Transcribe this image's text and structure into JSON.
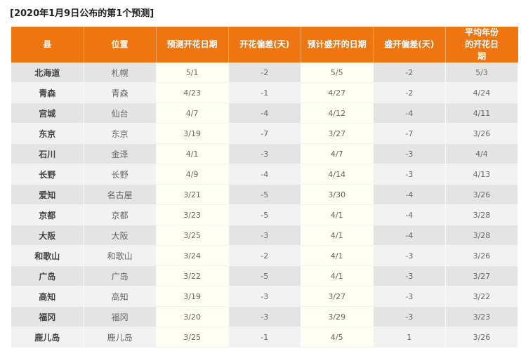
{
  "title": "[2020年1月9日公布的第1个预测]",
  "header": {
    "colors": {
      "header_bg": "#ef7510"
    },
    "columns": [
      "县",
      "位置",
      "预测开花日期",
      "开花偏差(天)",
      "预计盛开的日期",
      "盛开偏差(天)",
      "平均年份的开花日期"
    ]
  },
  "rows": [
    [
      "北海道",
      "札幌",
      "5/1",
      "-2",
      "5/5",
      "-2",
      "5/3"
    ],
    [
      "青森",
      "青森",
      "4/23",
      "-1",
      "4/27",
      "-2",
      "4/24"
    ],
    [
      "宫城",
      "仙台",
      "4/7",
      "-4",
      "4/12",
      "-4",
      "4/11"
    ],
    [
      "东京",
      "东京",
      "3/19",
      "-7",
      "3/27",
      "-7",
      "3/26"
    ],
    [
      "石川",
      "金泽",
      "4/1",
      "-3",
      "4/7",
      "-3",
      "4/4"
    ],
    [
      "长野",
      "长野",
      "4/9",
      "-4",
      "4/14",
      "-3",
      "4/13"
    ],
    [
      "爱知",
      "名古屋",
      "3/21",
      "-5",
      "3/30",
      "-4",
      "3/26"
    ],
    [
      "京都",
      "京都",
      "3/23",
      "-5",
      "4/1",
      "-4",
      "3/28"
    ],
    [
      "大阪",
      "大阪",
      "3/25",
      "-3",
      "4/1",
      "-4",
      "3/28"
    ],
    [
      "和歌山",
      "和歌山",
      "3/24",
      "-2",
      "4/1",
      "-3",
      "3/26"
    ],
    [
      "广岛",
      "广岛",
      "3/22",
      "-5",
      "4/1",
      "-3",
      "3/27"
    ],
    [
      "高知",
      "高知",
      "3/19",
      "-3",
      "3/27",
      "-3",
      "3/22"
    ],
    [
      "福冈",
      "福冈",
      "3/20",
      "-3",
      "3/29",
      "-3",
      "3/23"
    ],
    [
      "鹿儿岛",
      "鹿儿岛",
      "3/25",
      "-1",
      "4/5",
      "1",
      "3/26"
    ]
  ]
}
